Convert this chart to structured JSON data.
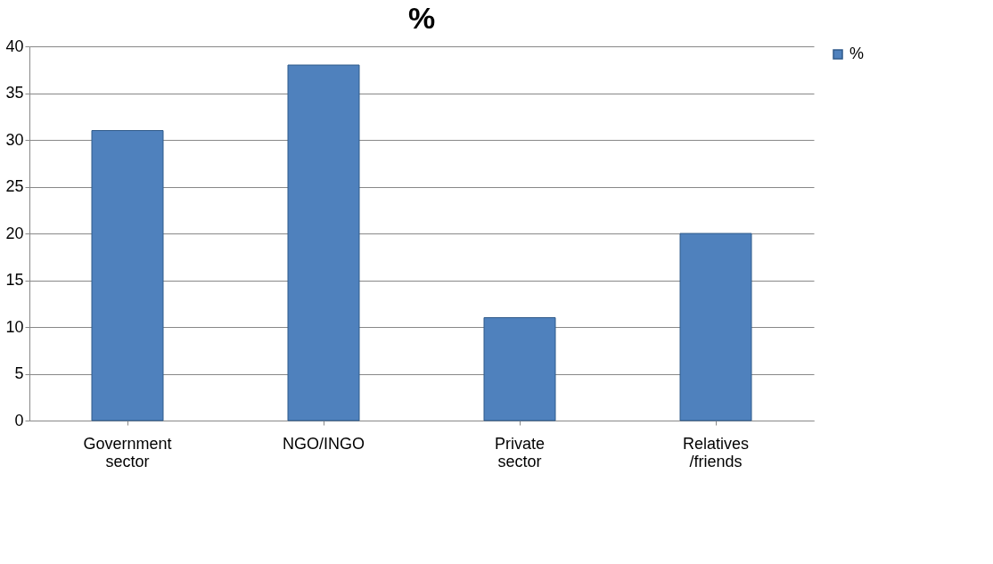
{
  "chart_data": {
    "type": "bar",
    "title": "%",
    "categories": [
      "Government sector",
      "NGO/INGO",
      "Private sector",
      "Relatives /friends"
    ],
    "series": [
      {
        "name": "%",
        "color": "#4f81bd",
        "values": [
          31,
          38,
          11,
          20
        ]
      }
    ],
    "ylim": [
      0,
      40
    ],
    "yticks": [
      0,
      5,
      10,
      15,
      20,
      25,
      30,
      35,
      40
    ],
    "grid": "y",
    "legend": "right"
  }
}
